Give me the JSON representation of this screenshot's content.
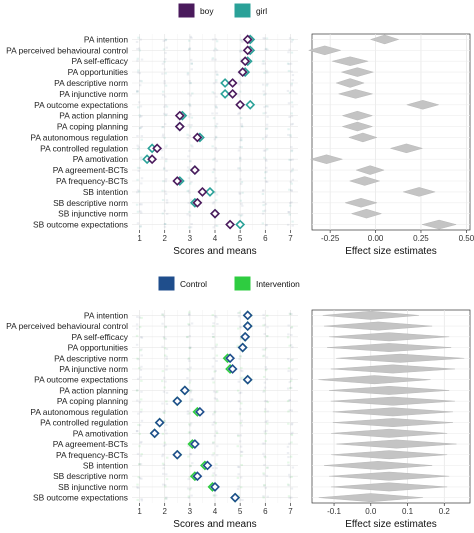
{
  "chart_data": [
    {
      "type": "scatter",
      "title": "",
      "legend": [
        {
          "name": "boy",
          "color": "#4a1a5c"
        },
        {
          "name": "girl",
          "color": "#2aa198"
        }
      ],
      "legend_position": "top",
      "xlabel": "Scores and means",
      "ylabel": "",
      "xlim": [
        0.7,
        7.3
      ],
      "xticks": [
        "1",
        "2",
        "3",
        "4",
        "5",
        "6",
        "7"
      ],
      "grid": true,
      "categories": [
        "PA intention",
        "PA perceived behavioural control",
        "PA self-efficacy",
        "PA opportunities",
        "PA descriptive norm",
        "PA injunctive norm",
        "PA outcome expectations",
        "PA action planning",
        "PA coping planning",
        "PA autonomous regulation",
        "PA controlled regulation",
        "PA amotivation",
        "PA agreement-BCTs",
        "PA frequency-BCTs",
        "SB intention",
        "SB descriptive norm",
        "SB injunctive norm",
        "SB outcome expectations"
      ],
      "series": [
        {
          "name": "boy",
          "values": [
            5.3,
            5.3,
            5.2,
            5.1,
            4.7,
            4.7,
            5.0,
            2.6,
            2.6,
            3.3,
            1.7,
            1.5,
            3.2,
            2.5,
            3.5,
            3.3,
            4.0,
            4.6
          ]
        },
        {
          "name": "girl",
          "values": [
            5.4,
            5.4,
            5.3,
            5.2,
            4.4,
            4.4,
            5.4,
            2.7,
            2.6,
            3.4,
            1.5,
            1.3,
            3.2,
            2.6,
            3.8,
            3.2,
            4.0,
            5.0
          ]
        }
      ]
    },
    {
      "type": "scatter",
      "title": "",
      "xlabel": "Effect size estimates",
      "ylabel": "",
      "xlim": [
        -0.35,
        0.52
      ],
      "xticks": [
        "-0.25",
        "0.00",
        "0.25",
        "0.50"
      ],
      "grid": true,
      "values": [
        0.05,
        -0.28,
        -0.14,
        -0.1,
        -0.14,
        -0.11,
        0.26,
        -0.1,
        -0.1,
        -0.07,
        0.17,
        -0.27,
        -0.03,
        -0.06,
        0.24,
        -0.08,
        -0.05,
        0.35
      ]
    },
    {
      "type": "scatter",
      "title": "",
      "legend": [
        {
          "name": "Control",
          "color": "#1f4e8c"
        },
        {
          "name": "Intervention",
          "color": "#2ecc40"
        }
      ],
      "legend_position": "top",
      "xlabel": "Scores and means",
      "ylabel": "",
      "xlim": [
        0.7,
        7.3
      ],
      "xticks": [
        "1",
        "2",
        "3",
        "4",
        "5",
        "6",
        "7"
      ],
      "grid": true,
      "categories": [
        "PA intention",
        "PA perceived behavioural control",
        "PA self-efficacy",
        "PA opportunities",
        "PA descriptive norm",
        "PA injunctive norm",
        "PA outcome expectations",
        "PA action planning",
        "PA coping planning",
        "PA autonomous regulation",
        "PA controlled regulation",
        "PA amotivation",
        "PA agreement-BCTs",
        "PA frequency-BCTs",
        "SB intention",
        "SB descriptive norm",
        "SB injunctive norm",
        "SB outcome expectations"
      ],
      "series": [
        {
          "name": "Control",
          "values": [
            5.3,
            5.3,
            5.2,
            5.1,
            4.6,
            4.7,
            5.3,
            2.8,
            2.5,
            3.4,
            1.8,
            1.6,
            3.2,
            2.5,
            3.7,
            3.3,
            4.0,
            4.8
          ]
        },
        {
          "name": "Intervention",
          "values": [
            5.3,
            5.3,
            5.2,
            5.1,
            4.5,
            4.6,
            5.3,
            2.8,
            2.5,
            3.3,
            1.8,
            1.6,
            3.1,
            2.5,
            3.6,
            3.2,
            3.9,
            4.8
          ]
        }
      ]
    },
    {
      "type": "scatter",
      "title": "",
      "xlabel": "Effect size estimates",
      "ylabel": "",
      "xlim": [
        -0.16,
        0.27
      ],
      "xticks": [
        "-0.1",
        "0.0",
        "0.1",
        "0.2"
      ],
      "grid": true,
      "values": [
        0.0,
        0.02,
        0.05,
        0.05,
        0.08,
        0.06,
        0.01,
        0.05,
        0.06,
        0.06,
        0.06,
        0.05,
        0.07,
        0.05,
        0.02,
        0.05,
        0.05,
        0.0
      ]
    }
  ]
}
